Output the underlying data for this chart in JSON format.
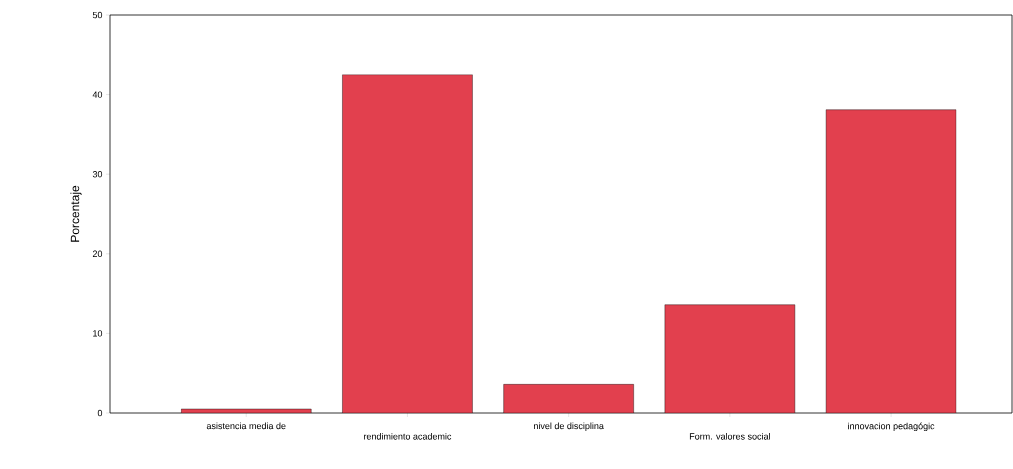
{
  "chart_data": {
    "type": "bar",
    "ylabel": "Porcentaje",
    "categories": [
      "asistencia media de",
      "rendimiento academic",
      "nivel de disciplina",
      "Form. valores social",
      "innovacion pedagógic"
    ],
    "values": [
      0.5,
      42.5,
      3.6,
      13.6,
      38.1
    ],
    "color": "#e2404e",
    "ylim": [
      0,
      50
    ],
    "yticks": [
      0,
      10,
      20,
      30,
      40,
      50
    ],
    "grid": false
  }
}
